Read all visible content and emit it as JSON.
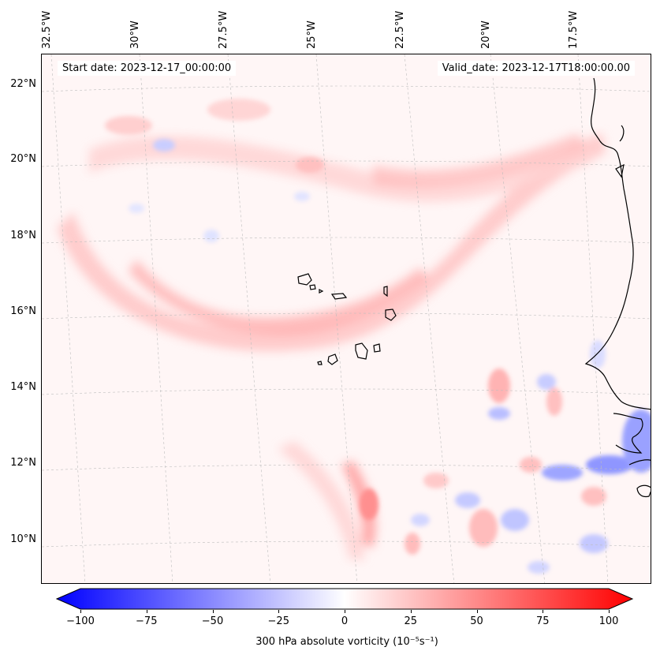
{
  "map": {
    "start_label": "Start date: 2023-12-17_00:00:00",
    "valid_label": "Valid_date: 2023-12-17T18:00:00.00",
    "longitude_labels": [
      "32.5°W",
      "30°W",
      "27.5°W",
      "25°W",
      "22.5°W",
      "20°W",
      "17.5°W"
    ],
    "latitude_labels": [
      "22°N",
      "20°N",
      "18°N",
      "16°N",
      "14°N",
      "12°N",
      "10°N"
    ],
    "field_colors": {
      "negative": "#0000ff",
      "positive": "#ff0000",
      "zero": "#ffffff"
    }
  },
  "colorbar": {
    "ticks": [
      "−100",
      "−75",
      "−50",
      "−25",
      "0",
      "25",
      "50",
      "75",
      "100"
    ],
    "label": "300 hPa absolute vorticity (10⁻⁵s⁻¹)"
  }
}
